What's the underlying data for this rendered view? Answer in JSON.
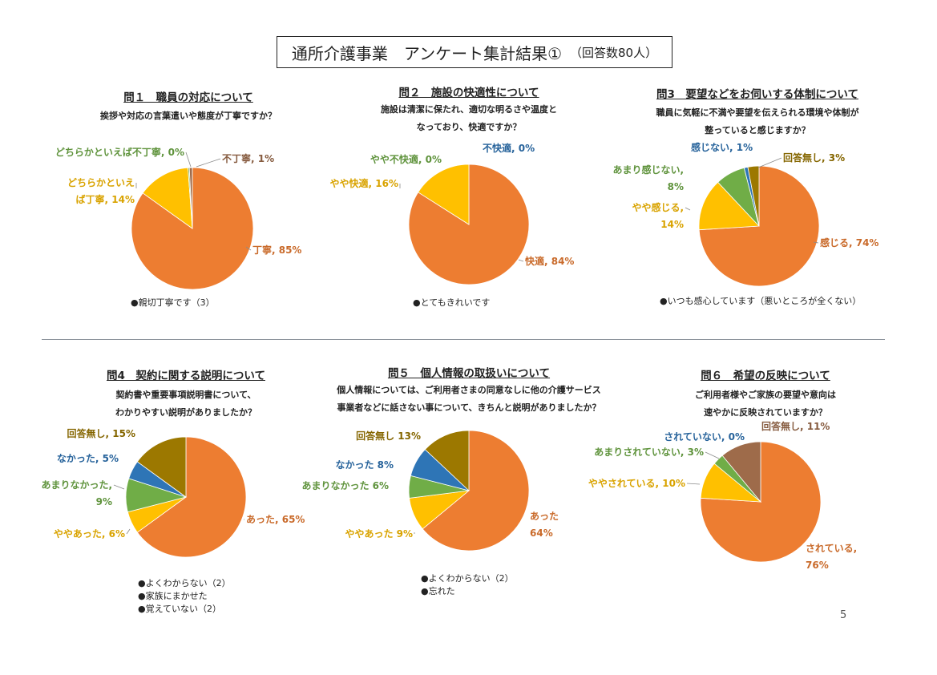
{
  "header": {
    "title": "通所介護事業　アンケート集計結果①",
    "subtitle": "（回答数80人）"
  },
  "page_number": "5",
  "colors": {
    "orange": "#ED7D31",
    "yellow": "#FFC000",
    "green": "#70AD47",
    "blue": "#2E75B6",
    "darkgold": "#9C7800",
    "brown": "#9E6B4A"
  },
  "chart_data": [
    {
      "type": "pie",
      "title": "問１　職員の対応について",
      "question": [
        "挨拶や対応の言葉遣いや態度が丁寧ですか？"
      ],
      "slices": [
        {
          "label": "丁寧, 85%",
          "value": 85,
          "color": "#ED7D31"
        },
        {
          "label": "どちらかといえば丁寧, 14%",
          "display": [
            "どちらかといえ",
            "ば丁寧, 14%"
          ],
          "value": 14,
          "color": "#FFC000"
        },
        {
          "label": "どちらかといえば不丁寧, 0%",
          "value": 0.35,
          "color": "#70AD47"
        },
        {
          "label": "不丁寧, 1%",
          "value": 0.8,
          "color": "#9E6B4A"
        }
      ],
      "comments": [
        "●親切丁寧です（3）"
      ]
    },
    {
      "type": "pie",
      "title": "問２　施設の快適性について",
      "question": [
        "施設は清潔に保たれ、適切な明るさや温度と",
        "なっており、快適ですか？"
      ],
      "slices": [
        {
          "label": "快適, 84%",
          "value": 84,
          "color": "#ED7D31"
        },
        {
          "label": "やや快適, 16%",
          "value": 16,
          "color": "#FFC000"
        },
        {
          "label": "やや不快適, 0%",
          "value": 0,
          "color": "#70AD47"
        },
        {
          "label": "不快適, 0%",
          "value": 0,
          "color": "#2E75B6"
        }
      ],
      "comments": [
        "●とてもきれいです"
      ]
    },
    {
      "type": "pie",
      "title": "問3　要望などをお伺いする体制について",
      "question": [
        "職員に気軽に不満や要望を伝えられる環境や体制が",
        "整っていると感じますか？"
      ],
      "slices": [
        {
          "label": "感じる, 74%",
          "value": 74,
          "color": "#ED7D31"
        },
        {
          "label": "やや感じる, 14%",
          "display": [
            "やや感じる,",
            "14%"
          ],
          "value": 14,
          "color": "#FFC000"
        },
        {
          "label": "あまり感じない, 8%",
          "display": [
            "あまり感じない,",
            "8%"
          ],
          "value": 8,
          "color": "#70AD47"
        },
        {
          "label": "感じない, 1%",
          "value": 1,
          "color": "#2E75B6"
        },
        {
          "label": "回答無し, 3%",
          "value": 3,
          "color": "#9C7800"
        }
      ],
      "comments": [
        "●いつも感心しています（悪いところが全くない）"
      ]
    },
    {
      "type": "pie",
      "title": "問4　契約に関する説明について",
      "question": [
        "契約書や重要事項説明書について、",
        "わかりやすい説明がありましたか？"
      ],
      "slices": [
        {
          "label": "あった, 65%",
          "value": 65,
          "color": "#ED7D31"
        },
        {
          "label": "ややあった, 6%",
          "value": 6,
          "color": "#FFC000"
        },
        {
          "label": "あまりなかった, 9%",
          "display": [
            "あまりなかった,",
            "9%"
          ],
          "value": 9,
          "color": "#70AD47"
        },
        {
          "label": "なかった, 5%",
          "value": 5,
          "color": "#2E75B6"
        },
        {
          "label": "回答無し, 15%",
          "value": 15,
          "color": "#9C7800"
        }
      ],
      "comments": [
        "●よくわからない（2）",
        "●家族にまかせた",
        "●覚えていない（2）"
      ]
    },
    {
      "type": "pie",
      "title": "問５　個人情報の取扱いについて",
      "question": [
        "個人情報については、ご利用者さまの同意なしに他の介護サービス",
        "事業者などに話さない事について、きちんと説明がありましたか？"
      ],
      "slices": [
        {
          "label": "あった 64%",
          "display": [
            "あった",
            "64%"
          ],
          "value": 64,
          "color": "#ED7D31"
        },
        {
          "label": "ややあった 9%",
          "value": 9,
          "color": "#FFC000"
        },
        {
          "label": "あまりなかった 6%",
          "value": 6,
          "color": "#70AD47"
        },
        {
          "label": "なかった 8%",
          "value": 8,
          "color": "#2E75B6"
        },
        {
          "label": "回答無し 13%",
          "value": 13,
          "color": "#9C7800"
        }
      ],
      "comments": [
        "●よくわからない（2）",
        "●忘れた"
      ]
    },
    {
      "type": "pie",
      "title": "問６　希望の反映について",
      "question": [
        "ご利用者様やご家族の要望や意向は",
        "速やかに反映されていますか？"
      ],
      "slices": [
        {
          "label": "されている, 76%",
          "display": [
            "されている,",
            "76%"
          ],
          "value": 76,
          "color": "#ED7D31"
        },
        {
          "label": "ややされている, 10%",
          "value": 10,
          "color": "#FFC000"
        },
        {
          "label": "あまりされていない, 3%",
          "value": 3,
          "color": "#70AD47"
        },
        {
          "label": "されていない, 0%",
          "value": 0,
          "color": "#2E75B6"
        },
        {
          "label": "回答無し, 11%",
          "value": 11,
          "color": "#9E6B4A"
        }
      ],
      "comments": []
    }
  ]
}
